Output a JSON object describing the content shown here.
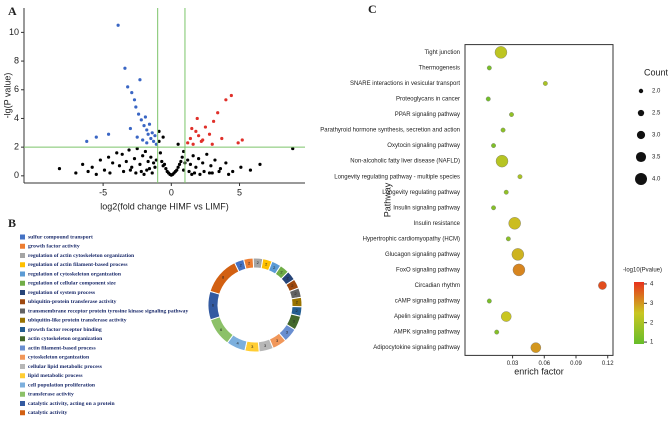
{
  "chart_data": [
    {
      "type": "scatter",
      "panel_label": "A",
      "x_label": "log2(fold change HIMF vs LIMF)",
      "y_label": "-lg(P value)",
      "xlim": [
        -10.8,
        9.8
      ],
      "ylim": [
        -0.5,
        11.7
      ],
      "xticks": [
        -5,
        0,
        5
      ],
      "yticks": [
        0,
        2,
        4,
        6,
        8,
        10
      ],
      "vlines": [
        -1,
        1
      ],
      "hline": 2,
      "line_color": "#7cc46a",
      "series": [
        {
          "color": "#000000",
          "x": [
            -8.2,
            -6.5,
            -6.1,
            -5.8,
            -5.2,
            -4.9,
            -4.6,
            -4.3,
            -4.0,
            -3.8,
            -3.6,
            -3.3,
            -3.1,
            -2.9,
            -2.7,
            -2.5,
            -2.3,
            -2.1,
            -1.9,
            -1.7,
            -1.5,
            -1.3,
            -1.1,
            -0.9,
            -0.8,
            -0.7,
            -0.6,
            -0.5,
            -0.4,
            -0.3,
            -0.2,
            -0.1,
            0,
            0.1,
            0.2,
            0.3,
            0.4,
            0.5,
            0.6,
            0.7,
            0.8,
            0.9,
            1.0,
            1.2,
            1.4,
            1.6,
            1.8,
            2.0,
            2.3,
            2.6,
            2.9,
            3.2,
            3.6,
            4.0,
            4.5,
            5.1,
            5.8,
            6.5,
            -3.0,
            -2.2,
            -1.6,
            -1.2,
            -0.9,
            -0.6,
            0.5,
            0.9,
            1.3,
            1.7,
            2.4,
            3.0,
            -4.5,
            -3.5,
            -2.6,
            -1.8,
            2.1,
            2.8,
            3.5,
            4.2,
            8.9,
            -7.0,
            -5.5,
            -2.0,
            -1.4,
            1.5
          ],
          "values": [
            0.5,
            0.8,
            0.3,
            0.6,
            1.1,
            0.4,
            1.3,
            0.9,
            1.6,
            0.7,
            1.5,
            1.0,
            1.8,
            0.6,
            1.2,
            1.9,
            0.8,
            1.4,
            1.7,
            1.0,
            1.3,
            0.9,
            1.1,
            2.4,
            1.6,
            1.0,
            0.7,
            0.8,
            0.5,
            0.3,
            0.2,
            0.1,
            0.05,
            0.1,
            0.2,
            0.3,
            0.4,
            0.6,
            0.8,
            1.0,
            1.3,
            1.7,
            0.9,
            1.1,
            0.8,
            1.4,
            0.6,
            1.2,
            0.9,
            1.5,
            0.7,
            1.1,
            0.5,
            0.9,
            0.3,
            0.6,
            0.4,
            0.8,
            0.4,
            0.3,
            0.5,
            0.6,
            3.1,
            2.7,
            2.2,
            0.4,
            0.3,
            0.2,
            0.3,
            0.2,
            0.2,
            0.3,
            0.2,
            0.4,
            0.1,
            0.2,
            0.3,
            0.1,
            1.9,
            0.2,
            0.1,
            0.1,
            0.2,
            0.1
          ]
        },
        {
          "color": "#3a66c4",
          "x": [
            -3.9,
            -3.4,
            -3.2,
            -2.9,
            -2.7,
            -2.6,
            -2.4,
            -2.3,
            -2.2,
            -2.0,
            -1.9,
            -1.8,
            -1.7,
            -1.6,
            -1.5,
            -1.4,
            -1.3,
            -1.2,
            -1.1,
            -3.0,
            -2.5,
            -2.1,
            -1.8,
            -6.2,
            -5.5,
            -4.6
          ],
          "values": [
            10.5,
            7.5,
            6.2,
            5.8,
            5.3,
            4.8,
            4.3,
            6.7,
            3.9,
            3.5,
            4.1,
            3.2,
            2.9,
            3.6,
            2.6,
            3.0,
            2.4,
            2.8,
            2.2,
            3.3,
            2.7,
            2.5,
            2.3,
            2.4,
            2.7,
            2.9
          ]
        },
        {
          "color": "#e0302a",
          "x": [
            1.2,
            1.4,
            1.6,
            1.8,
            2.0,
            2.2,
            2.5,
            2.8,
            3.1,
            3.4,
            3.7,
            4.0,
            4.4,
            1.5,
            2.3,
            3.0,
            4.9,
            5.2,
            1.9
          ],
          "values": [
            2.3,
            2.6,
            2.2,
            3.1,
            2.8,
            2.4,
            3.4,
            2.9,
            3.8,
            4.4,
            2.6,
            5.3,
            5.6,
            3.3,
            2.5,
            2.2,
            2.3,
            2.5,
            4.0
          ]
        }
      ]
    },
    {
      "type": "donut",
      "panel_label": "B",
      "categories": [
        "sulfur compound transport",
        "growth factor activity",
        "regulation of actin cytoskeleton organization",
        "regulation of actin filament-based process",
        "regulation of cytoskeleton organization",
        "regulation of cellular component size",
        "regulation of system process",
        "ubiquitin-protein transferase activity",
        "transmembrane receptor protein tyrosine kinase signaling pathway",
        "ubiquitin-like protein transferase activity",
        "growth factor receptor binding",
        "actin cytoskeleton organization",
        "actin filament-based process",
        "cytoskeleton organization",
        "cellular lipid metabolic process",
        "lipid metabolic process",
        "cell population proliferation",
        "transferase activity",
        "catalytic activity, acting on a protein",
        "catalytic activity"
      ],
      "colors": [
        "#4472c4",
        "#ed7d31",
        "#a5a5a5",
        "#ffc000",
        "#5b9bd5",
        "#70ad47",
        "#264478",
        "#9e480e",
        "#636363",
        "#997300",
        "#255e91",
        "#43682b",
        "#698ed0",
        "#f1975a",
        "#b7b7b7",
        "#ffcd33",
        "#7cafdd",
        "#8cc168",
        "#335aa1",
        "#d26012"
      ],
      "values": [
        2,
        2,
        2,
        2,
        2,
        2,
        2,
        2,
        2,
        2,
        2,
        3,
        3,
        3,
        3,
        3,
        4,
        6,
        6,
        8
      ]
    },
    {
      "type": "bubble",
      "panel_label": "C",
      "x_label": "enrich factor",
      "y_label": "Pathway",
      "categories": [
        "Tight junction",
        "Thermogenesis",
        "SNARE interactions in vesicular transport",
        "Proteoglycans in cancer",
        "PPAR signaling pathway",
        "Parathyroid hormone synthesis, secretion and action",
        "Oxytocin signaling pathway",
        "Non-alcoholic fatty liver disease (NAFLD)",
        "Longevity regulating pathway - multiple species",
        "Longevity regulating pathway",
        "Insulin signaling pathway",
        "Insulin resistance",
        "Hypertrophic cardiomyopathy (HCM)",
        "Glucagon signaling pathway",
        "FoxO signaling pathway",
        "Circadian rhythm",
        "cAMP signaling pathway",
        "Apelin signaling pathway",
        "AMPK signaling pathway",
        "Adipocytokine signaling pathway"
      ],
      "values": [
        0.019,
        0.008,
        0.061,
        0.007,
        0.029,
        0.021,
        0.012,
        0.02,
        0.037,
        0.024,
        0.012,
        0.032,
        0.026,
        0.035,
        0.036,
        0.115,
        0.008,
        0.024,
        0.015,
        0.052
      ],
      "sizes": [
        4,
        2,
        2,
        2,
        2,
        2,
        2,
        4,
        2,
        2,
        2,
        4,
        2,
        4,
        4,
        3,
        2,
        3.5,
        2,
        3.5
      ],
      "pvalues": [
        2.3,
        1.2,
        2.0,
        1.1,
        1.6,
        1.5,
        1.3,
        2.2,
        2.0,
        1.6,
        1.4,
        2.6,
        1.5,
        2.7,
        3.2,
        3.8,
        1.2,
        2.5,
        1.4,
        3.0
      ],
      "xlim": [
        -0.015,
        0.125
      ],
      "xticks": [
        0.03,
        0.06,
        0.09,
        0.12
      ],
      "size_title": "Count",
      "size_ticks": [
        {
          "value": 2,
          "label": "2.0"
        },
        {
          "value": 2.5,
          "label": "2.5"
        },
        {
          "value": 3,
          "label": "3.0"
        },
        {
          "value": 3.5,
          "label": "3.5"
        },
        {
          "value": 4,
          "label": "4.0"
        }
      ],
      "color_title": "-log10(Pvalue)",
      "clim": [
        0.9,
        4.1
      ],
      "cticks": [
        1,
        2,
        3,
        4
      ],
      "color_scale": [
        "#66bd2a",
        "#c9c621",
        "#e8311c"
      ]
    }
  ]
}
